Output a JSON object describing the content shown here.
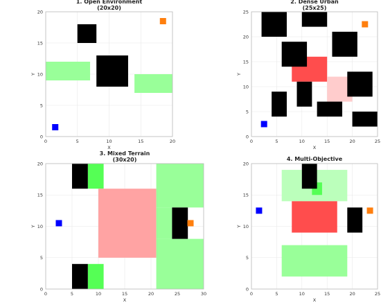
{
  "chart_data": [
    {
      "type": "heatmap",
      "title": "1. Open Environment",
      "subtitle": "(20x20)",
      "xlabel": "X",
      "ylabel": "Y",
      "xlim": [
        0,
        20
      ],
      "ylim": [
        0,
        20
      ],
      "xticks": [
        "0",
        "5",
        "10",
        "15",
        "20"
      ],
      "yticks": [
        "0",
        "5",
        "10",
        "15",
        "20"
      ],
      "grid": true,
      "obstacles": [
        {
          "x0": 5,
          "x1": 8,
          "y0": 15,
          "y1": 18
        },
        {
          "x0": 8,
          "x1": 13,
          "y0": 8,
          "y1": 13
        }
      ],
      "zones": [
        {
          "kind": "green",
          "x0": 0,
          "x1": 7,
          "y0": 9,
          "y1": 12
        },
        {
          "kind": "green",
          "x0": 14,
          "x1": 20,
          "y0": 7,
          "y1": 10
        }
      ],
      "start": {
        "x": 1.5,
        "y": 1.5
      },
      "goal": {
        "x": 18.5,
        "y": 18.5
      }
    },
    {
      "type": "heatmap",
      "title": "2. Dense Urban",
      "subtitle": "(25x25)",
      "xlabel": "X",
      "ylabel": "Y",
      "xlim": [
        0,
        25
      ],
      "ylim": [
        0,
        25
      ],
      "xticks": [
        "0",
        "5",
        "10",
        "15",
        "20",
        "25"
      ],
      "yticks": [
        "0",
        "5",
        "10",
        "15",
        "20",
        "25"
      ],
      "grid": true,
      "obstacles": [
        {
          "x0": 2,
          "x1": 7,
          "y0": 20,
          "y1": 25
        },
        {
          "x0": 10,
          "x1": 15,
          "y0": 22,
          "y1": 25
        },
        {
          "x0": 6,
          "x1": 11,
          "y0": 14,
          "y1": 19
        },
        {
          "x0": 16,
          "x1": 21,
          "y0": 16,
          "y1": 21
        },
        {
          "x0": 19,
          "x1": 24,
          "y0": 8,
          "y1": 13
        },
        {
          "x0": 9,
          "x1": 12,
          "y0": 6,
          "y1": 11
        },
        {
          "x0": 4,
          "x1": 7,
          "y0": 4,
          "y1": 9
        },
        {
          "x0": 13,
          "x1": 18,
          "y0": 4,
          "y1": 7
        },
        {
          "x0": 20,
          "x1": 25,
          "y0": 2,
          "y1": 5
        }
      ],
      "zones": [
        {
          "kind": "red",
          "x0": 8,
          "x1": 15,
          "y0": 11,
          "y1": 16
        },
        {
          "kind": "pink",
          "x0": 15,
          "x1": 20,
          "y0": 7,
          "y1": 12
        }
      ],
      "start": {
        "x": 2.5,
        "y": 2.5
      },
      "goal": {
        "x": 22.5,
        "y": 22.5
      }
    },
    {
      "type": "heatmap",
      "title": "3. Mixed Terrain",
      "subtitle": "(30x20)",
      "xlabel": "X",
      "ylabel": "Y",
      "xlim": [
        0,
        30
      ],
      "ylim": [
        0,
        20
      ],
      "xticks": [
        "0",
        "5",
        "10",
        "15",
        "20",
        "25",
        "30"
      ],
      "yticks": [
        "0",
        "5",
        "10",
        "15",
        "20"
      ],
      "grid": true,
      "obstacles": [
        {
          "x0": 5,
          "x1": 8,
          "y0": 16,
          "y1": 20
        },
        {
          "x0": 5,
          "x1": 8,
          "y0": 0,
          "y1": 4
        },
        {
          "x0": 24,
          "x1": 27,
          "y0": 8,
          "y1": 13
        }
      ],
      "zones": [
        {
          "kind": "bright-green",
          "x0": 8,
          "x1": 11,
          "y0": 16,
          "y1": 20
        },
        {
          "kind": "bright-green",
          "x0": 8,
          "x1": 11,
          "y0": 0,
          "y1": 4
        },
        {
          "kind": "red-light",
          "x0": 10,
          "x1": 21,
          "y0": 5,
          "y1": 16
        },
        {
          "kind": "green",
          "x0": 21,
          "x1": 30,
          "y0": 13,
          "y1": 20
        },
        {
          "kind": "green",
          "x0": 21,
          "x1": 30,
          "y0": 0,
          "y1": 8
        },
        {
          "kind": "green",
          "x0": 21,
          "x1": 24,
          "y0": 8,
          "y1": 13
        }
      ],
      "start": {
        "x": 2.5,
        "y": 10.5
      },
      "goal": {
        "x": 27.5,
        "y": 10.5
      }
    },
    {
      "type": "heatmap",
      "title": "4. Multi-Objective",
      "subtitle": "",
      "xlabel": "X",
      "ylabel": "Y",
      "xlim": [
        0,
        25
      ],
      "ylim": [
        0,
        20
      ],
      "xticks": [
        "0",
        "5",
        "10",
        "15",
        "20",
        "25"
      ],
      "yticks": [
        "0",
        "5",
        "10",
        "15",
        "20"
      ],
      "grid": true,
      "obstacles": [
        {
          "x0": 10,
          "x1": 13,
          "y0": 16,
          "y1": 20
        },
        {
          "x0": 19,
          "x1": 22,
          "y0": 9,
          "y1": 13
        }
      ],
      "zones": [
        {
          "kind": "green-light",
          "x0": 6,
          "x1": 19,
          "y0": 14,
          "y1": 19
        },
        {
          "kind": "bright-green",
          "x0": 12,
          "x1": 14,
          "y0": 15,
          "y1": 17
        },
        {
          "kind": "red",
          "x0": 8,
          "x1": 17,
          "y0": 9,
          "y1": 14
        },
        {
          "kind": "green",
          "x0": 6,
          "x1": 19,
          "y0": 2,
          "y1": 7
        }
      ],
      "start": {
        "x": 1.5,
        "y": 12.5
      },
      "goal": {
        "x": 23.5,
        "y": 12.5
      }
    }
  ],
  "colors": {
    "obstacle": "#000000",
    "green": "#99ff99",
    "green-light": "#bbffbb",
    "bright-green": "#55ff55",
    "red": "#ff4d4d",
    "red-light": "#ffa3a3",
    "pink": "#ffcccc",
    "start": "#0000ff",
    "goal": "#ff7f0e",
    "grid": "#e8e8e8"
  }
}
